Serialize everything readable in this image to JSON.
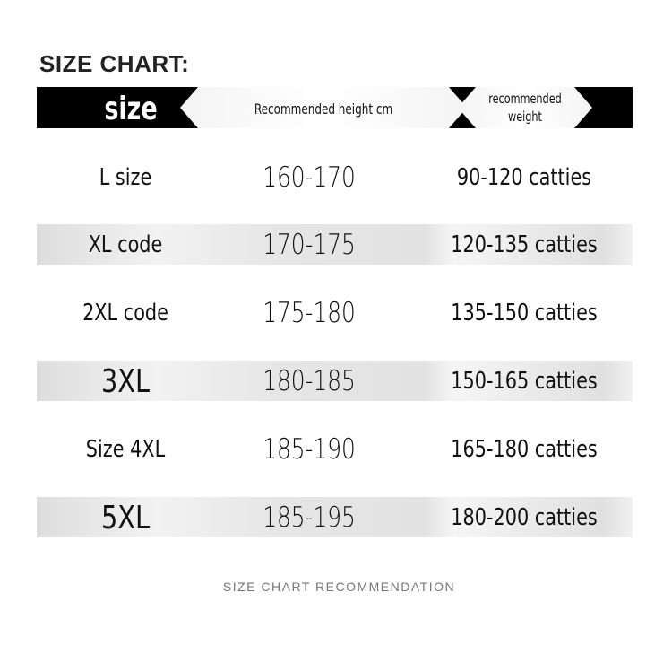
{
  "title": "SIZE CHART:",
  "header": {
    "size": "size",
    "height": "Recommended height cm",
    "weight_line1": "recommended",
    "weight_line2": "weight"
  },
  "rows": [
    {
      "size": "L size",
      "height": "160-170",
      "weight": "90-120 catties"
    },
    {
      "size": "XL code",
      "height": "170-175",
      "weight": "120-135 catties"
    },
    {
      "size": "2XL code",
      "height": "175-180",
      "weight": "135-150 catties"
    },
    {
      "size": "3XL",
      "height": "180-185",
      "weight": "150-165 catties"
    },
    {
      "size": "Size 4XL",
      "height": "185-190",
      "weight": "165-180 catties"
    },
    {
      "size": "5XL",
      "height": "185-195",
      "weight": "180-200 catties"
    }
  ],
  "footer": "SIZE CHART RECOMMENDATION"
}
